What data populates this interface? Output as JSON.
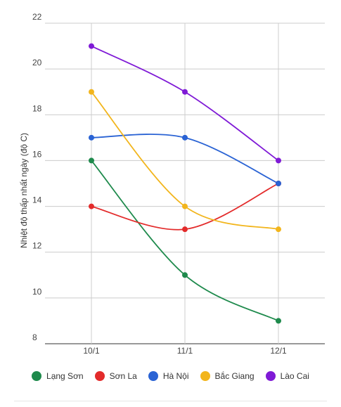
{
  "chart_data": {
    "type": "line",
    "categories": [
      "10/1",
      "11/1",
      "12/1"
    ],
    "ylabel": "Nhiệt độ thấp nhất ngày (độ C)",
    "ylim": [
      8,
      22
    ],
    "yticks": [
      8,
      10,
      12,
      14,
      16,
      18,
      20,
      22
    ],
    "grid": true,
    "legend": "bottom",
    "series": [
      {
        "name": "Lạng Sơn",
        "color": "#1e8a4c",
        "values": [
          16,
          11,
          9
        ]
      },
      {
        "name": "Sơn La",
        "color": "#e32b2b",
        "values": [
          14,
          13,
          15
        ]
      },
      {
        "name": "Hà Nội",
        "color": "#2a63d4",
        "values": [
          17,
          17,
          15
        ]
      },
      {
        "name": "Bắc Giang",
        "color": "#f2b51c",
        "values": [
          19,
          14,
          13
        ]
      },
      {
        "name": "Lào Cai",
        "color": "#7f1ad6",
        "values": [
          21,
          19,
          16
        ]
      }
    ]
  }
}
